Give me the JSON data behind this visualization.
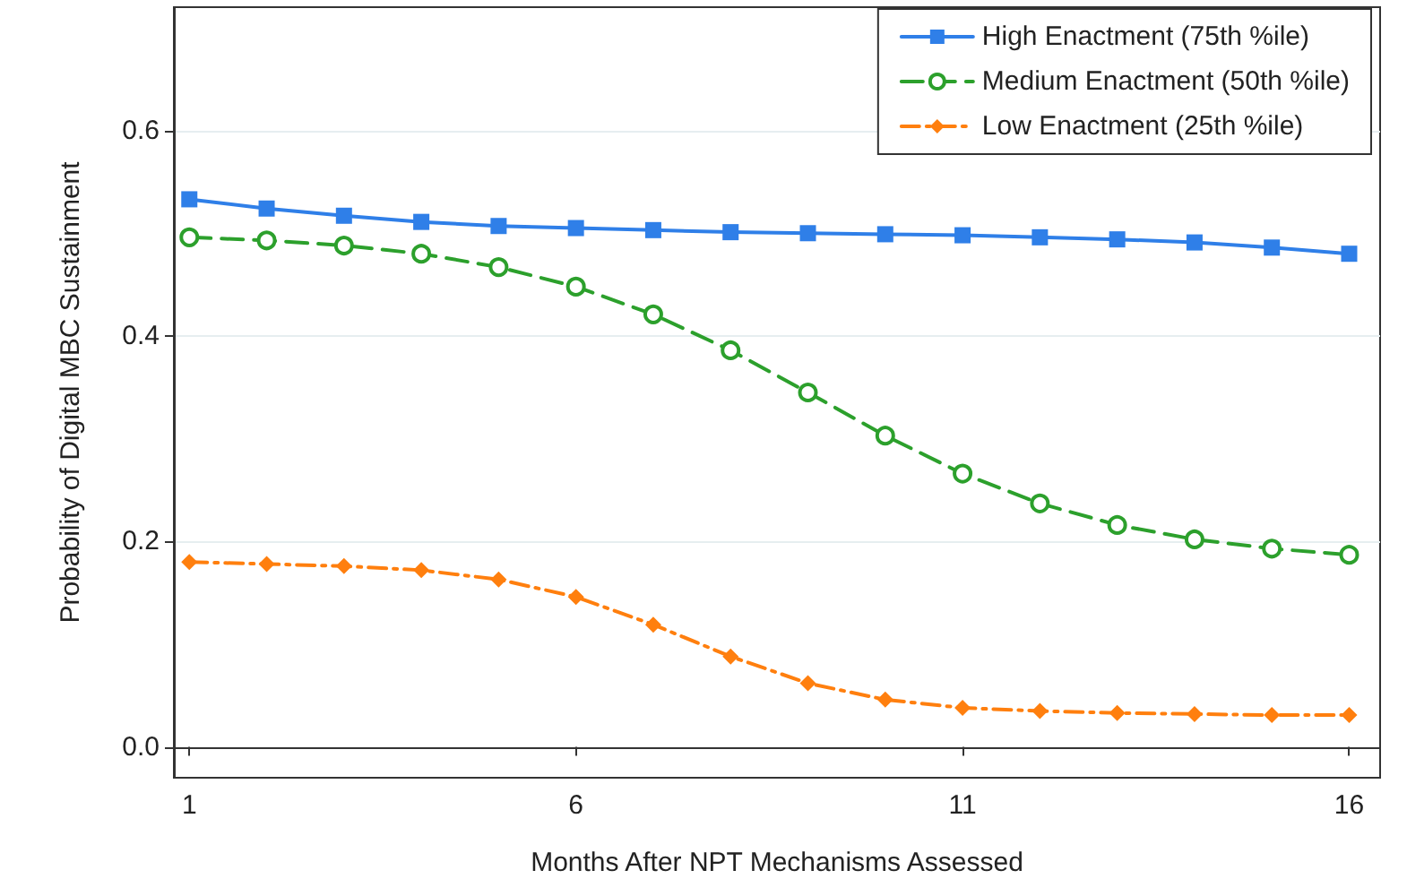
{
  "chart_data": {
    "type": "line",
    "xlabel": "Months After NPT Mechanisms Assessed",
    "ylabel": "Probability of Digital MBC Sustainment",
    "x": [
      1,
      2,
      3,
      4,
      5,
      6,
      7,
      8,
      9,
      10,
      11,
      12,
      13,
      14,
      15,
      16
    ],
    "series": [
      {
        "name": "High Enactment (75th %ile)",
        "color": "#2f7fe8",
        "marker": "square",
        "line_style": "solid",
        "values": [
          0.533,
          0.524,
          0.517,
          0.511,
          0.507,
          0.505,
          0.503,
          0.501,
          0.5,
          0.499,
          0.498,
          0.496,
          0.494,
          0.491,
          0.486,
          0.48
        ]
      },
      {
        "name": "Medium Enactment (50th %ile)",
        "color": "#2ca02c",
        "marker": "circle",
        "line_style": "dashed",
        "values": [
          0.496,
          0.493,
          0.488,
          0.48,
          0.467,
          0.448,
          0.421,
          0.386,
          0.345,
          0.303,
          0.266,
          0.237,
          0.216,
          0.202,
          0.193,
          0.187
        ]
      },
      {
        "name": "Low Enactment (25th %ile)",
        "color": "#ff7f0e",
        "marker": "diamond",
        "line_style": "dashdot",
        "values": [
          0.18,
          0.178,
          0.176,
          0.172,
          0.163,
          0.146,
          0.119,
          0.088,
          0.062,
          0.046,
          0.038,
          0.035,
          0.033,
          0.032,
          0.031,
          0.031
        ]
      }
    ],
    "xlim": [
      0.8,
      16.4
    ],
    "xticks": [
      1,
      6,
      11,
      16
    ],
    "ylim": [
      -0.03,
      0.72
    ],
    "yticks": [
      {
        "value": 0,
        "label": "0.0"
      },
      {
        "value": 0.2,
        "label": "0.2"
      },
      {
        "value": 0.4,
        "label": "0.4"
      },
      {
        "value": 0.6,
        "label": "0.6"
      }
    ],
    "grid": "y",
    "legend": "top right"
  }
}
